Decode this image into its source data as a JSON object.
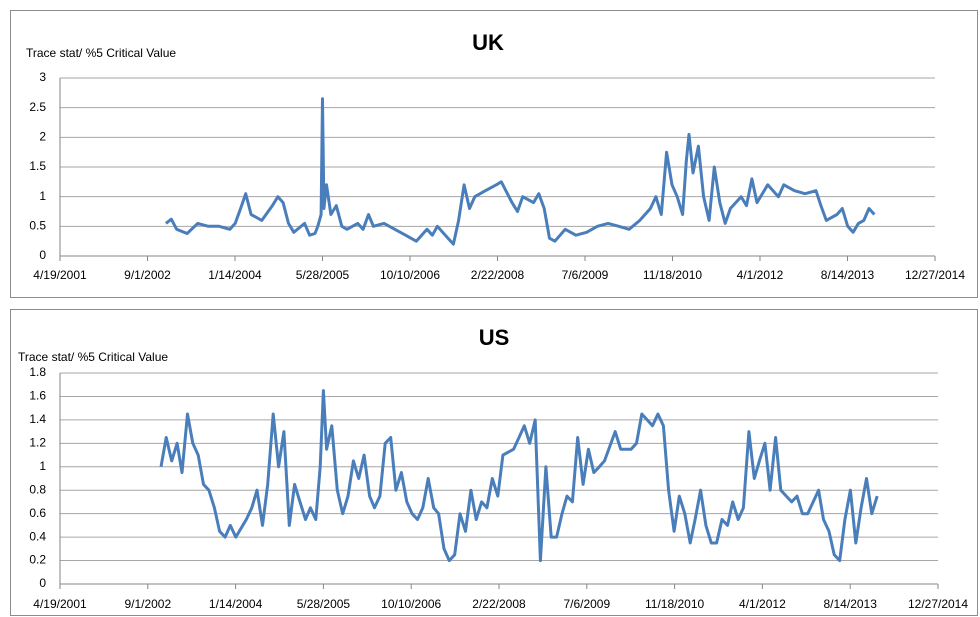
{
  "chart_data": [
    {
      "type": "line",
      "title": "UK",
      "y_label": "Trace stat/ %5 Critical Value",
      "color": "#4a7ebb",
      "grid": true,
      "xlim": [
        "2001-04-19",
        "2014-12-27"
      ],
      "xticks": [
        {
          "value": "2001-04-19",
          "label": "4/19/2001"
        },
        {
          "value": "2002-09-01",
          "label": "9/1/2002"
        },
        {
          "value": "2004-01-14",
          "label": "1/14/2004"
        },
        {
          "value": "2005-05-28",
          "label": "5/28/2005"
        },
        {
          "value": "2006-10-10",
          "label": "10/10/2006"
        },
        {
          "value": "2008-02-22",
          "label": "2/22/2008"
        },
        {
          "value": "2009-07-06",
          "label": "7/6/2009"
        },
        {
          "value": "2010-11-18",
          "label": "11/18/2010"
        },
        {
          "value": "2012-04-01",
          "label": "4/1/2012"
        },
        {
          "value": "2013-08-14",
          "label": "8/14/2013"
        },
        {
          "value": "2014-12-27",
          "label": "12/27/2014"
        }
      ],
      "ylim": [
        0,
        3
      ],
      "yticks": [
        0,
        0.5,
        1,
        1.5,
        2,
        2.5,
        3
      ],
      "x": [
        "2002-12-15",
        "2003-01-15",
        "2003-02-15",
        "2003-04-15",
        "2003-06-15",
        "2003-08-15",
        "2003-10-15",
        "2003-12-15",
        "2004-01-15",
        "2004-02-15",
        "2004-03-15",
        "2004-04-15",
        "2004-06-15",
        "2004-08-15",
        "2004-09-15",
        "2004-10-15",
        "2004-11-15",
        "2004-12-15",
        "2005-02-15",
        "2005-03-15",
        "2005-04-15",
        "2005-05-01",
        "2005-05-20",
        "2005-05-28",
        "2005-06-05",
        "2005-06-20",
        "2005-07-15",
        "2005-08-15",
        "2005-09-15",
        "2005-10-15",
        "2005-12-15",
        "2006-01-15",
        "2006-02-15",
        "2006-03-15",
        "2006-05-15",
        "2006-07-15",
        "2006-09-15",
        "2006-10-15",
        "2006-11-15",
        "2007-01-15",
        "2007-02-15",
        "2007-03-15",
        "2007-05-15",
        "2007-06-15",
        "2007-07-15",
        "2007-08-15",
        "2007-09-15",
        "2007-10-15",
        "2007-12-15",
        "2008-02-15",
        "2008-03-15",
        "2008-05-15",
        "2008-06-15",
        "2008-07-15",
        "2008-09-15",
        "2008-10-15",
        "2008-11-15",
        "2008-12-15",
        "2009-01-15",
        "2009-03-15",
        "2009-05-15",
        "2009-07-15",
        "2009-09-15",
        "2009-11-15",
        "2010-01-15",
        "2010-03-15",
        "2010-05-15",
        "2010-07-15",
        "2010-08-15",
        "2010-09-15",
        "2010-10-15",
        "2010-11-15",
        "2010-12-15",
        "2011-01-15",
        "2011-02-05",
        "2011-02-20",
        "2011-03-15",
        "2011-04-15",
        "2011-05-15",
        "2011-06-15",
        "2011-07-15",
        "2011-08-15",
        "2011-09-15",
        "2011-10-15",
        "2011-12-15",
        "2012-01-15",
        "2012-02-15",
        "2012-03-15",
        "2012-05-15",
        "2012-07-15",
        "2012-08-15",
        "2012-10-15",
        "2012-12-15",
        "2013-02-15",
        "2013-03-15",
        "2013-04-15",
        "2013-06-15",
        "2013-07-15",
        "2013-08-15",
        "2013-09-15",
        "2013-10-15",
        "2013-11-15",
        "2013-12-15",
        "2014-01-15"
      ],
      "values": [
        0.55,
        0.62,
        0.45,
        0.38,
        0.55,
        0.5,
        0.5,
        0.45,
        0.55,
        0.8,
        1.05,
        0.7,
        0.6,
        0.85,
        1.0,
        0.9,
        0.55,
        0.4,
        0.55,
        0.35,
        0.38,
        0.5,
        0.7,
        2.65,
        0.8,
        1.2,
        0.7,
        0.85,
        0.5,
        0.45,
        0.55,
        0.45,
        0.7,
        0.5,
        0.55,
        0.45,
        0.35,
        0.3,
        0.25,
        0.45,
        0.35,
        0.5,
        0.3,
        0.2,
        0.6,
        1.2,
        0.8,
        1.0,
        1.1,
        1.2,
        1.25,
        0.9,
        0.75,
        1.0,
        0.9,
        1.05,
        0.8,
        0.3,
        0.25,
        0.45,
        0.35,
        0.4,
        0.5,
        0.55,
        0.5,
        0.45,
        0.6,
        0.8,
        1.0,
        0.7,
        1.75,
        1.2,
        1.0,
        0.7,
        1.6,
        2.05,
        1.4,
        1.85,
        1.0,
        0.6,
        1.5,
        0.9,
        0.55,
        0.8,
        1.0,
        0.85,
        1.3,
        0.9,
        1.2,
        1.0,
        1.2,
        1.1,
        1.05,
        1.1,
        0.85,
        0.6,
        0.7,
        0.8,
        0.5,
        0.4,
        0.55,
        0.6,
        0.8,
        0.7
      ]
    },
    {
      "type": "line",
      "title": "US",
      "y_label": "Trace stat/ %5 Critical Value",
      "color": "#4a7ebb",
      "grid": true,
      "xlim": [
        "2001-04-19",
        "2014-12-27"
      ],
      "xticks": [
        {
          "value": "2001-04-19",
          "label": "4/19/2001"
        },
        {
          "value": "2002-09-01",
          "label": "9/1/2002"
        },
        {
          "value": "2004-01-14",
          "label": "1/14/2004"
        },
        {
          "value": "2005-05-28",
          "label": "5/28/2005"
        },
        {
          "value": "2006-10-10",
          "label": "10/10/2006"
        },
        {
          "value": "2008-02-22",
          "label": "2/22/2008"
        },
        {
          "value": "2009-07-06",
          "label": "7/6/2009"
        },
        {
          "value": "2010-11-18",
          "label": "11/18/2010"
        },
        {
          "value": "2012-04-01",
          "label": "4/1/2012"
        },
        {
          "value": "2013-08-14",
          "label": "8/14/2013"
        },
        {
          "value": "2014-12-27",
          "label": "12/27/2014"
        }
      ],
      "ylim": [
        0,
        1.8
      ],
      "yticks": [
        0,
        0.2,
        0.4,
        0.6,
        0.8,
        1,
        1.2,
        1.4,
        1.6,
        1.8
      ],
      "x": [
        "2002-11-15",
        "2002-12-15",
        "2003-01-15",
        "2003-02-15",
        "2003-03-15",
        "2003-04-15",
        "2003-05-15",
        "2003-06-15",
        "2003-07-15",
        "2003-08-15",
        "2003-09-15",
        "2003-10-15",
        "2003-11-15",
        "2003-12-15",
        "2004-01-15",
        "2004-03-15",
        "2004-04-15",
        "2004-05-15",
        "2004-06-15",
        "2004-07-15",
        "2004-08-15",
        "2004-09-15",
        "2004-10-15",
        "2004-11-15",
        "2004-12-15",
        "2005-01-15",
        "2005-02-15",
        "2005-03-15",
        "2005-04-15",
        "2005-05-10",
        "2005-05-28",
        "2005-06-15",
        "2005-07-15",
        "2005-08-15",
        "2005-09-15",
        "2005-10-15",
        "2005-11-15",
        "2005-12-15",
        "2006-01-15",
        "2006-02-15",
        "2006-03-15",
        "2006-04-15",
        "2006-05-15",
        "2006-06-15",
        "2006-07-15",
        "2006-08-15",
        "2006-09-15",
        "2006-10-15",
        "2006-11-15",
        "2006-12-15",
        "2007-01-15",
        "2007-02-15",
        "2007-03-15",
        "2007-04-15",
        "2007-05-15",
        "2007-06-15",
        "2007-07-15",
        "2007-08-15",
        "2007-09-15",
        "2007-10-15",
        "2007-11-15",
        "2007-12-15",
        "2008-01-15",
        "2008-02-15",
        "2008-03-15",
        "2008-05-15",
        "2008-06-15",
        "2008-07-15",
        "2008-08-15",
        "2008-09-15",
        "2008-10-15",
        "2008-11-15",
        "2008-12-15",
        "2009-01-15",
        "2009-02-15",
        "2009-03-15",
        "2009-04-15",
        "2009-05-15",
        "2009-06-15",
        "2009-07-15",
        "2009-08-15",
        "2009-09-15",
        "2009-10-15",
        "2009-12-15",
        "2010-01-15",
        "2010-03-15",
        "2010-04-15",
        "2010-05-15",
        "2010-06-15",
        "2010-07-15",
        "2010-08-15",
        "2010-09-15",
        "2010-10-15",
        "2010-11-15",
        "2010-12-15",
        "2011-01-15",
        "2011-02-15",
        "2011-03-15",
        "2011-04-15",
        "2011-05-15",
        "2011-06-15",
        "2011-07-15",
        "2011-08-15",
        "2011-09-15",
        "2011-10-15",
        "2011-11-15",
        "2011-12-15",
        "2012-01-15",
        "2012-02-15",
        "2012-03-15",
        "2012-04-15",
        "2012-05-15",
        "2012-06-15",
        "2012-07-15",
        "2012-08-15",
        "2012-09-15",
        "2012-10-15",
        "2012-11-15",
        "2012-12-15",
        "2013-02-15",
        "2013-03-15",
        "2013-04-15",
        "2013-05-15",
        "2013-06-15",
        "2013-07-15",
        "2013-08-15",
        "2013-09-15",
        "2013-10-15",
        "2013-11-15",
        "2013-12-15",
        "2014-01-15"
      ],
      "values": [
        1.0,
        1.25,
        1.05,
        1.2,
        0.95,
        1.45,
        1.2,
        1.1,
        0.85,
        0.8,
        0.65,
        0.45,
        0.4,
        0.5,
        0.4,
        0.55,
        0.65,
        0.8,
        0.5,
        0.85,
        1.45,
        1.0,
        1.3,
        0.5,
        0.85,
        0.7,
        0.55,
        0.65,
        0.55,
        1.0,
        1.65,
        1.15,
        1.35,
        0.8,
        0.6,
        0.75,
        1.05,
        0.9,
        1.1,
        0.75,
        0.65,
        0.75,
        1.2,
        1.25,
        0.8,
        0.95,
        0.7,
        0.6,
        0.55,
        0.65,
        0.9,
        0.65,
        0.6,
        0.3,
        0.2,
        0.25,
        0.6,
        0.45,
        0.8,
        0.55,
        0.7,
        0.65,
        0.9,
        0.75,
        1.1,
        1.15,
        1.25,
        1.35,
        1.2,
        1.4,
        0.2,
        1.0,
        0.4,
        0.4,
        0.6,
        0.75,
        0.7,
        1.25,
        0.85,
        1.15,
        0.95,
        1.0,
        1.05,
        1.3,
        1.15,
        1.15,
        1.2,
        1.45,
        1.4,
        1.35,
        1.45,
        1.35,
        0.8,
        0.45,
        0.75,
        0.6,
        0.35,
        0.55,
        0.8,
        0.5,
        0.35,
        0.35,
        0.55,
        0.5,
        0.7,
        0.55,
        0.65,
        1.3,
        0.9,
        1.05,
        1.2,
        0.8,
        1.25,
        0.8,
        0.75,
        0.7,
        0.75,
        0.6,
        0.6,
        0.8,
        0.55,
        0.45,
        0.25,
        0.2,
        0.55,
        0.8,
        0.35,
        0.65,
        0.9,
        0.6,
        0.75
      ]
    }
  ]
}
